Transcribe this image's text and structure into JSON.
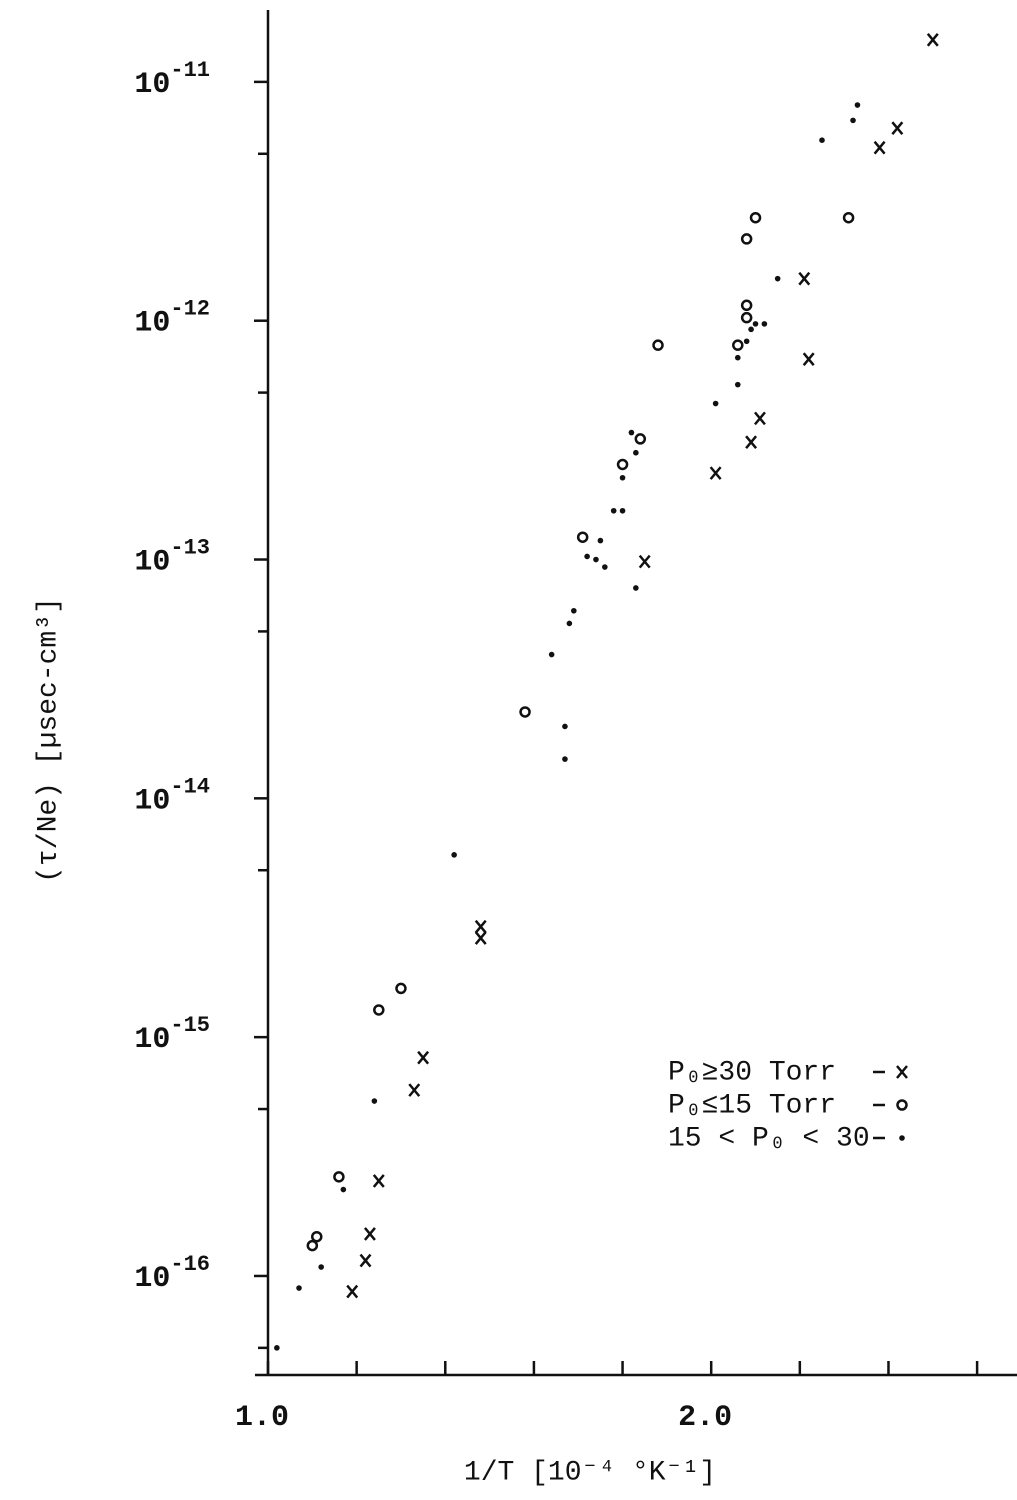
{
  "chart_data": {
    "type": "scatter",
    "x_label": "1/T  [10⁻⁴ °K⁻¹]",
    "y_label": "(τ/Ne)  [µsec-cm³]",
    "xlim": [
      1.0,
      2.69
    ],
    "xticks": [
      {
        "value": 1.0,
        "label": "1.0"
      },
      {
        "value": 2.0,
        "label": "2.0"
      }
    ],
    "xminorticks": [
      1.2,
      1.4,
      1.6,
      1.8,
      2.2,
      2.4,
      2.6
    ],
    "ylim": [
      4e-17,
      2e-11
    ],
    "yscale": "log",
    "yticks": [
      {
        "value": 1e-11,
        "label": "10-11"
      },
      {
        "value": 1e-12,
        "label": "10-12"
      },
      {
        "value": 1e-13,
        "label": "10-13"
      },
      {
        "value": 1e-14,
        "label": "10-14"
      },
      {
        "value": 1e-15,
        "label": "10-15"
      },
      {
        "value": 1e-16,
        "label": "10-16"
      }
    ],
    "yminorticks": [
      5e-12,
      5e-13,
      5e-14,
      5e-15,
      5e-16,
      5e-17
    ],
    "legend": "lower right",
    "series": [
      {
        "name": "P₀≥30 Torr",
        "marker": "x",
        "color": "#111111",
        "x": [
          2.5,
          2.42,
          2.38,
          2.21,
          2.22,
          2.11,
          2.09,
          2.01,
          1.85,
          1.48,
          1.48,
          1.35,
          1.33,
          1.25,
          1.23,
          1.22,
          1.19
        ],
        "values": [
          1.5e-11,
          6.4e-12,
          5.3e-12,
          1.5e-12,
          6.9e-13,
          3.9e-13,
          3.1e-13,
          2.3e-13,
          9.8e-14,
          2.9e-15,
          2.6e-15,
          8.2e-16,
          6e-16,
          2.5e-16,
          1.5e-16,
          1.16e-16,
          8.6e-17
        ]
      },
      {
        "name": "P₀≤15 Torr",
        "marker": "o",
        "color": "#111111",
        "x": [
          2.08,
          2.1,
          2.31,
          1.88,
          1.84,
          1.8,
          1.71,
          1.58,
          1.3,
          1.25,
          1.16,
          1.1,
          1.11,
          2.06,
          2.08,
          2.08
        ],
        "values": [
          2.2e-12,
          2.7e-12,
          2.7e-12,
          7.9e-13,
          3.2e-13,
          2.5e-13,
          1.24e-13,
          2.3e-14,
          1.6e-15,
          1.3e-15,
          2.6e-16,
          1.34e-16,
          1.46e-16,
          7.9e-13,
          1.16e-12,
          1.03e-12
        ]
      },
      {
        "name": "15 < P₀ < 30",
        "marker": "dot",
        "color": "#111111",
        "x": [
          2.25,
          2.32,
          2.33,
          2.15,
          2.06,
          2.06,
          2.08,
          2.09,
          2.1,
          2.12,
          2.01,
          1.83,
          1.8,
          1.78,
          1.8,
          1.72,
          1.74,
          1.75,
          1.76,
          1.83,
          1.69,
          1.68,
          1.64,
          1.67,
          1.67,
          1.42,
          1.24,
          1.17,
          1.12,
          1.07,
          1.02,
          1.82
        ],
        "values": [
          5.7e-12,
          6.9e-12,
          8e-12,
          1.5e-12,
          7e-13,
          5.4e-13,
          8.2e-13,
          9.2e-13,
          9.7e-13,
          9.7e-13,
          4.5e-13,
          2.8e-13,
          2.2e-13,
          1.6e-13,
          1.6e-13,
          1.03e-13,
          1e-13,
          1.2e-13,
          9.3e-14,
          7.6e-14,
          6.1e-14,
          5.4e-14,
          4e-14,
          2e-14,
          1.46e-14,
          5.8e-15,
          5.4e-16,
          2.3e-16,
          1.09e-16,
          8.9e-17,
          5e-17,
          3.4e-13
        ]
      }
    ]
  }
}
